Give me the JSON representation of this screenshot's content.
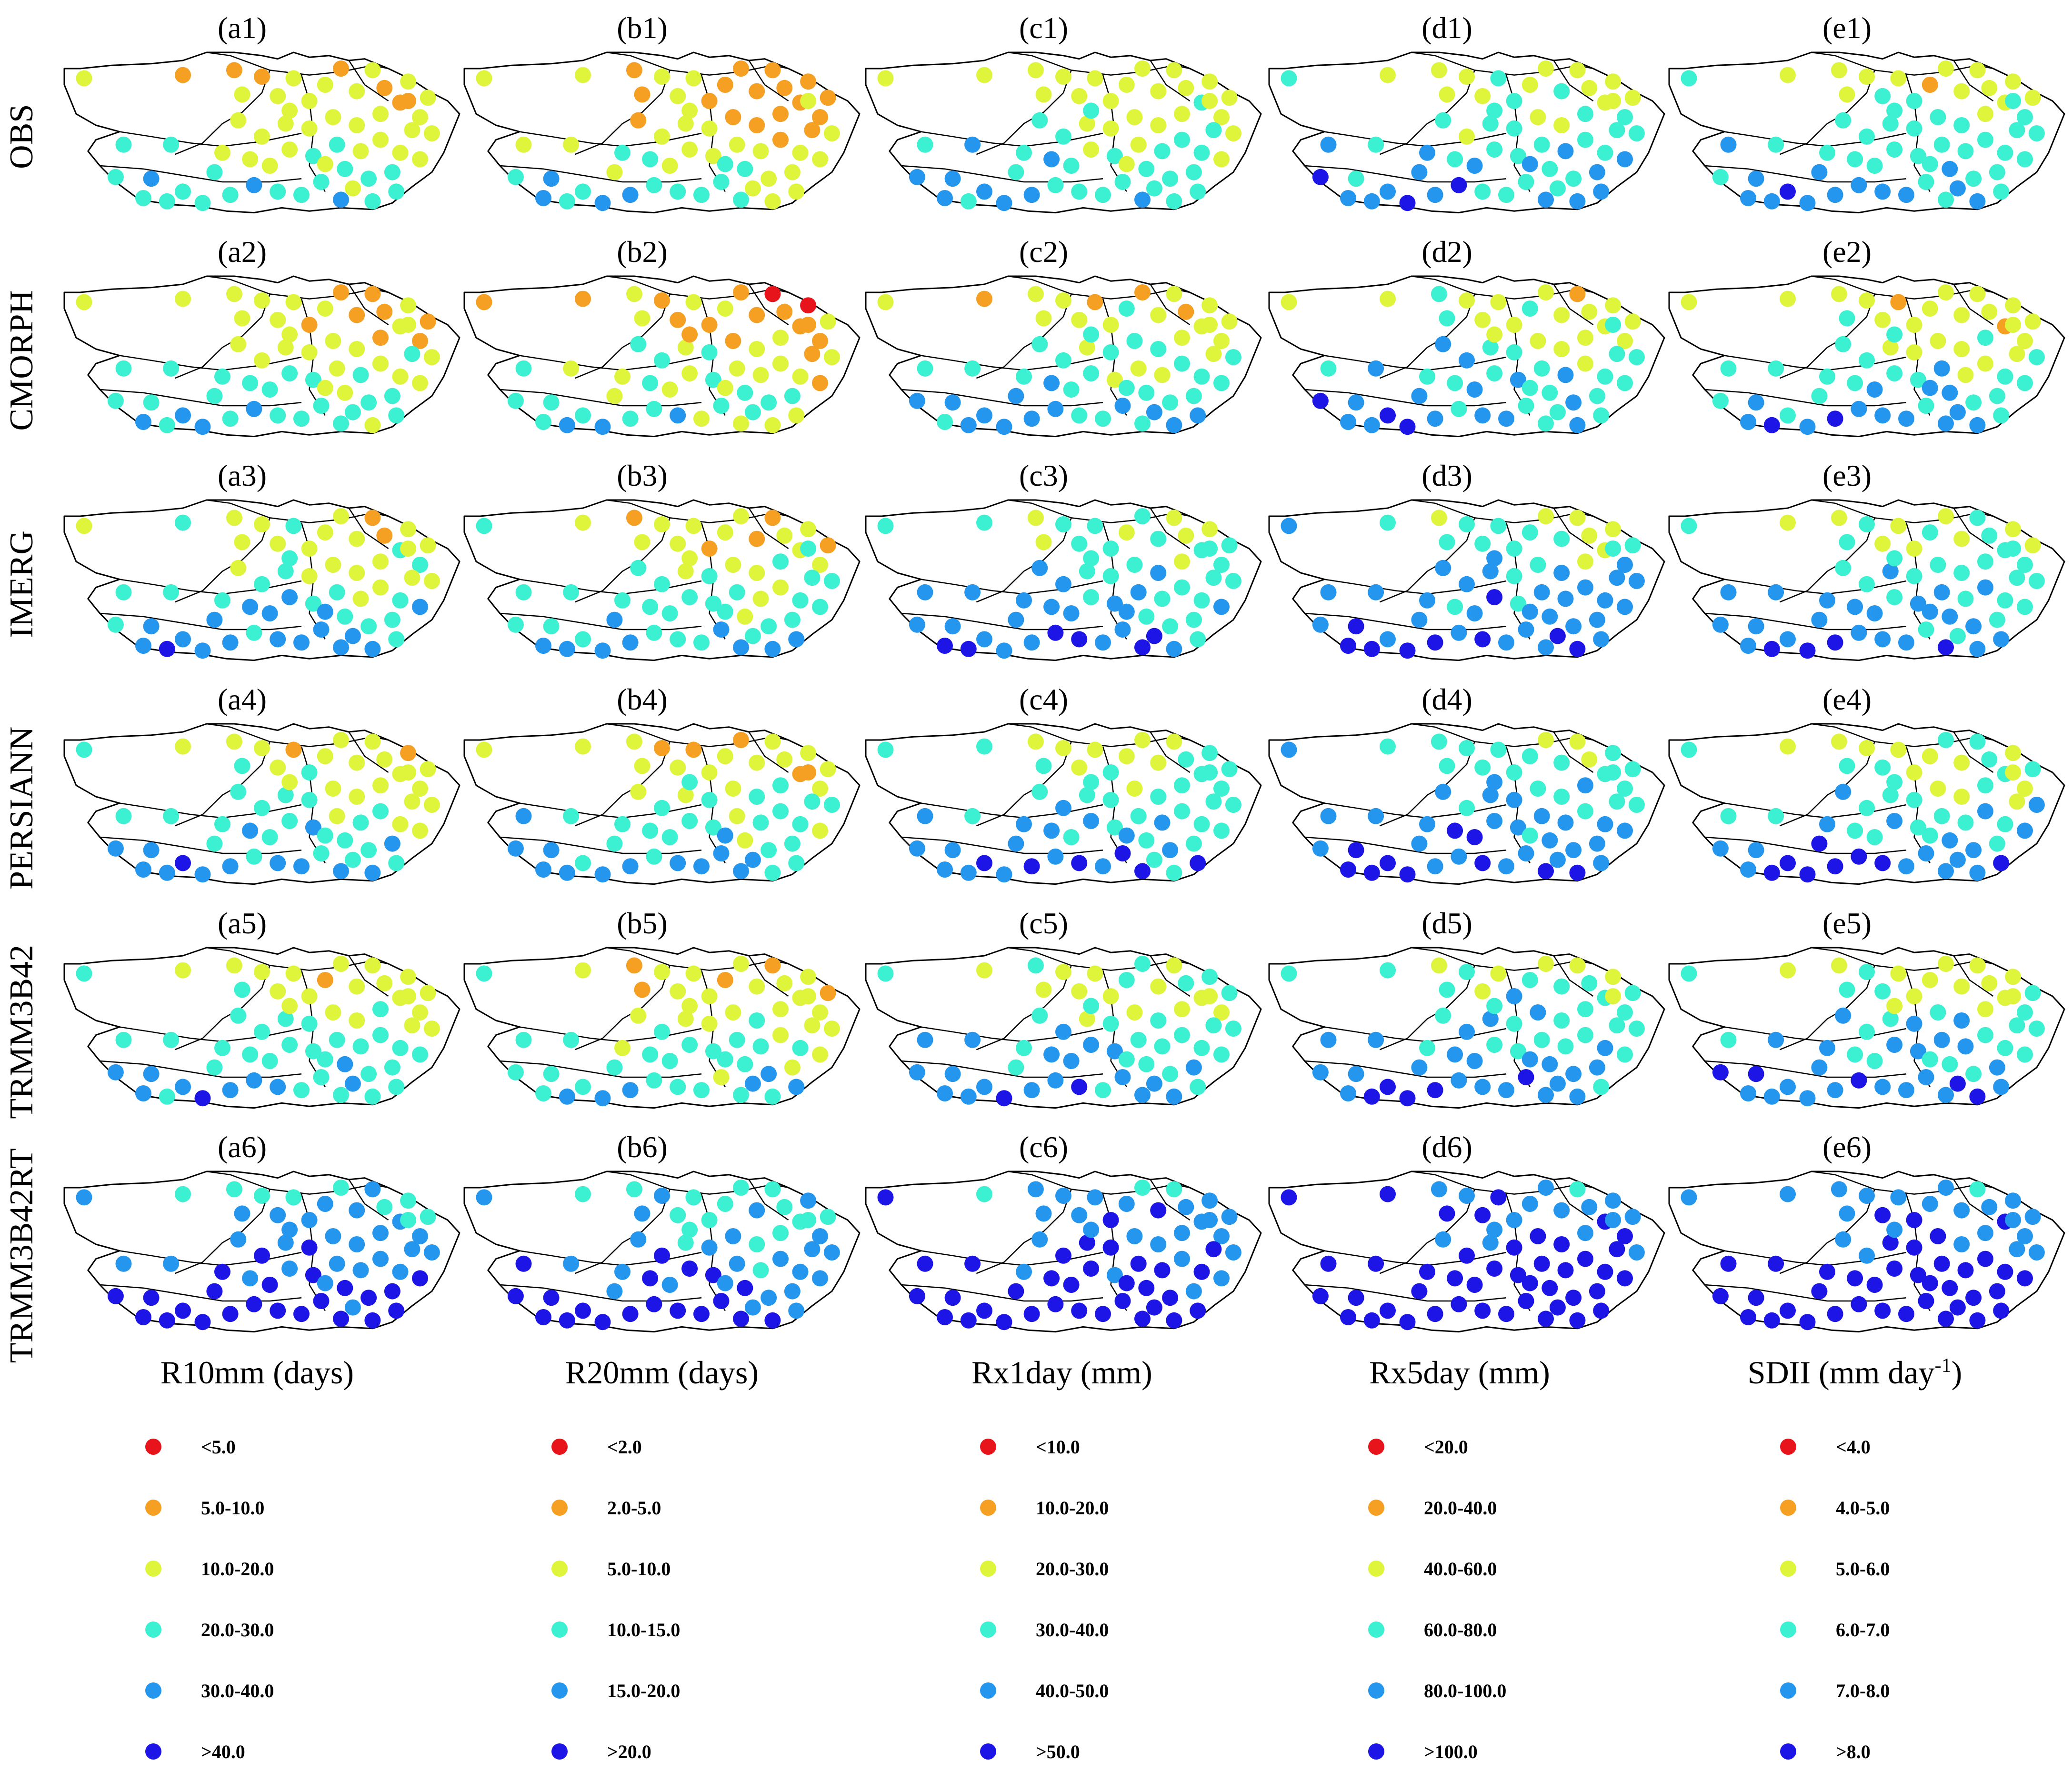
{
  "figure": {
    "rows": [
      "OBS",
      "CMORPH",
      "IMERG",
      "PERSIANN",
      "TRMM3B42",
      "TRMM3B42RT"
    ],
    "columns": [
      {
        "letter": "a",
        "title": "R10mm (days)"
      },
      {
        "letter": "b",
        "title": "R20mm (days)"
      },
      {
        "letter": "c",
        "title": "Rx1day (mm)"
      },
      {
        "letter": "d",
        "title": "Rx5day (mm)"
      },
      {
        "letter": "e",
        "title": "SDII (mm day",
        "title_sup": "-1",
        "title_end": ")"
      }
    ],
    "panel_labels": [
      [
        "(a1)",
        "(b1)",
        "(c1)",
        "(d1)",
        "(e1)"
      ],
      [
        "(a2)",
        "(b2)",
        "(c2)",
        "(d2)",
        "(e2)"
      ],
      [
        "(a3)",
        "(b3)",
        "(c3)",
        "(d3)",
        "(e3)"
      ],
      [
        "(a4)",
        "(b4)",
        "(c4)",
        "(d4)",
        "(e4)"
      ],
      [
        "(a5)",
        "(b5)",
        "(c5)",
        "(d5)",
        "(e5)"
      ],
      [
        "(a6)",
        "(b6)",
        "(c6)",
        "(d6)",
        "(e6)"
      ]
    ]
  },
  "legend": {
    "colors": [
      "#e8141c",
      "#f5a023",
      "#dff53c",
      "#3cf0d2",
      "#2596ee",
      "#1d14e6"
    ],
    "classes": [
      [
        "<5.0",
        "5.0-10.0",
        "10.0-20.0",
        "20.0-30.0",
        "30.0-40.0",
        ">40.0"
      ],
      [
        "<2.0",
        "2.0-5.0",
        "5.0-10.0",
        "10.0-15.0",
        "15.0-20.0",
        ">20.0"
      ],
      [
        "<10.0",
        "10.0-20.0",
        "20.0-30.0",
        "30.0-40.0",
        "40.0-50.0",
        ">50.0"
      ],
      [
        "<20.0",
        "20.0-40.0",
        "40.0-60.0",
        "60.0-80.0",
        "80.0-100.0",
        ">100.0"
      ],
      [
        "<4.0",
        "4.0-5.0",
        "5.0-6.0",
        "6.0-7.0",
        "7.0-8.0",
        ">8.0"
      ]
    ]
  },
  "icons": {
    "station_marker": "filled-circle-icon",
    "boundary": "region-outline-icon"
  }
}
